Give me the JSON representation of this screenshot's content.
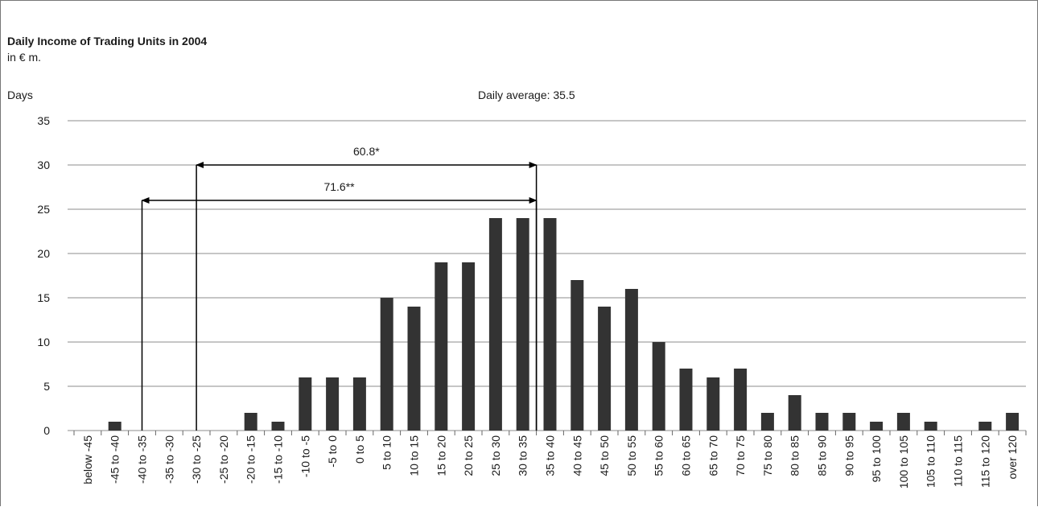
{
  "chart_data": {
    "type": "bar",
    "title": "Daily Income of Trading Units in 2004",
    "subtitle": "in € m.",
    "ylabel": "Days",
    "annotation_average": "Daily average: 35.5",
    "ylim": [
      0,
      35
    ],
    "yticks": [
      0,
      5,
      10,
      15,
      20,
      25,
      30,
      35
    ],
    "grid": true,
    "categories": [
      "below -45",
      "-45 to -40",
      "-40 to -35",
      "-35 to -30",
      "-30 to -25",
      "-25 to -20",
      "-20 to -15",
      "-15 to -10",
      "-10 to -5",
      "-5 to 0",
      "0 to 5",
      "5 to 10",
      "10 to 15",
      "15 to 20",
      "20 to 25",
      "25 to 30",
      "30 to 35",
      "35 to 40",
      "40 to 45",
      "45 to 50",
      "50 to 55",
      "55 to 60",
      "60 to 65",
      "65 to 70",
      "70 to 75",
      "75 to 80",
      "80 to 85",
      "85 to 90",
      "90 to 95",
      "95 to 100",
      "100 to 105",
      "105 to 110",
      "110 to 115",
      "115 to 120",
      "over 120"
    ],
    "values": [
      0,
      1,
      0,
      0,
      0,
      0,
      2,
      1,
      6,
      6,
      6,
      15,
      14,
      19,
      19,
      24,
      24,
      24,
      17,
      14,
      16,
      10,
      7,
      6,
      7,
      2,
      4,
      2,
      2,
      1,
      2,
      1,
      0,
      1,
      2
    ],
    "bar_color": "#333333",
    "ranges": [
      {
        "label": "60.8*",
        "from_category": "-30 to -25",
        "to_category": "30 to 35",
        "level": 30
      },
      {
        "label": "71.6**",
        "from_category": "-40 to -35",
        "to_category": "30 to 35",
        "level": 26
      }
    ]
  }
}
